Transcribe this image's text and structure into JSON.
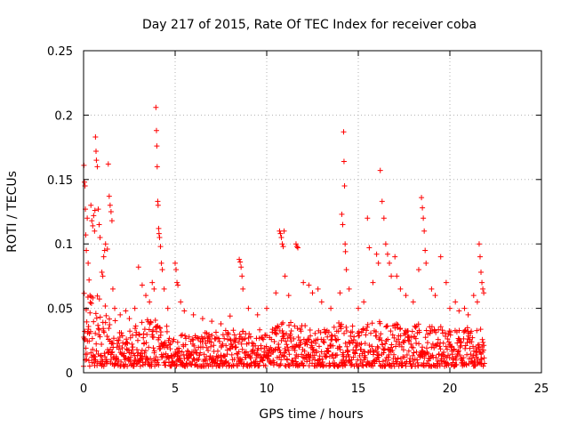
{
  "chart_data": {
    "type": "scatter",
    "title": "Day 217 of 2015, Rate Of TEC Index for receiver coba",
    "xlabel": "GPS time / hours",
    "ylabel": "ROTI / TECUs",
    "xlim": [
      0,
      25
    ],
    "ylim": [
      0,
      0.25
    ],
    "x_ticks": [
      0,
      5,
      10,
      15,
      20,
      25
    ],
    "x_tick_labels": [
      "0",
      "5",
      "10",
      "15",
      "20",
      "25"
    ],
    "y_ticks": [
      0,
      0.05,
      0.1,
      0.15,
      0.2,
      0.25
    ],
    "y_tick_labels": [
      "0",
      "0.05",
      "0.1",
      "0.15",
      "0.2",
      "0.25"
    ],
    "grid": true,
    "marker": "+",
    "color": "#ff0000",
    "series": [
      {
        "points": [
          [
            0.02,
            0.161
          ],
          [
            0.05,
            0.148
          ],
          [
            0.08,
            0.145
          ],
          [
            0.1,
            0.127
          ],
          [
            0.12,
            0.107
          ],
          [
            0.15,
            0.095
          ],
          [
            0.2,
            0.12
          ],
          [
            0.25,
            0.085
          ],
          [
            0.3,
            0.072
          ],
          [
            0.35,
            0.06
          ],
          [
            0.4,
            0.13
          ],
          [
            0.45,
            0.118
          ],
          [
            0.5,
            0.114
          ],
          [
            0.55,
            0.122
          ],
          [
            0.6,
            0.11
          ],
          [
            0.62,
            0.126
          ],
          [
            0.65,
            0.183
          ],
          [
            0.68,
            0.172
          ],
          [
            0.7,
            0.165
          ],
          [
            0.75,
            0.16
          ],
          [
            0.8,
            0.127
          ],
          [
            0.85,
            0.115
          ],
          [
            0.9,
            0.105
          ],
          [
            1.0,
            0.078
          ],
          [
            1.05,
            0.075
          ],
          [
            1.1,
            0.09
          ],
          [
            1.15,
            0.095
          ],
          [
            1.2,
            0.1
          ],
          [
            1.3,
            0.096
          ],
          [
            1.35,
            0.162
          ],
          [
            1.4,
            0.137
          ],
          [
            1.45,
            0.13
          ],
          [
            1.5,
            0.125
          ],
          [
            1.55,
            0.118
          ],
          [
            1.6,
            0.065
          ],
          [
            1.7,
            0.05
          ],
          [
            2.0,
            0.045
          ],
          [
            2.3,
            0.048
          ],
          [
            2.5,
            0.042
          ],
          [
            2.8,
            0.05
          ],
          [
            3.0,
            0.082
          ],
          [
            3.2,
            0.068
          ],
          [
            3.4,
            0.06
          ],
          [
            3.6,
            0.055
          ],
          [
            3.75,
            0.07
          ],
          [
            3.85,
            0.065
          ],
          [
            3.95,
            0.206
          ],
          [
            3.98,
            0.188
          ],
          [
            4.0,
            0.176
          ],
          [
            4.02,
            0.16
          ],
          [
            4.05,
            0.133
          ],
          [
            4.07,
            0.13
          ],
          [
            4.1,
            0.112
          ],
          [
            4.12,
            0.108
          ],
          [
            4.15,
            0.105
          ],
          [
            4.2,
            0.098
          ],
          [
            4.25,
            0.085
          ],
          [
            4.3,
            0.08
          ],
          [
            4.4,
            0.065
          ],
          [
            4.6,
            0.05
          ],
          [
            5.0,
            0.085
          ],
          [
            5.05,
            0.08
          ],
          [
            5.1,
            0.07
          ],
          [
            5.15,
            0.068
          ],
          [
            5.3,
            0.055
          ],
          [
            5.5,
            0.048
          ],
          [
            6.0,
            0.045
          ],
          [
            6.5,
            0.042
          ],
          [
            7.0,
            0.04
          ],
          [
            7.5,
            0.038
          ],
          [
            8.0,
            0.044
          ],
          [
            8.5,
            0.088
          ],
          [
            8.55,
            0.086
          ],
          [
            8.6,
            0.082
          ],
          [
            8.65,
            0.075
          ],
          [
            8.7,
            0.065
          ],
          [
            9.0,
            0.05
          ],
          [
            9.5,
            0.045
          ],
          [
            10.0,
            0.05
          ],
          [
            10.5,
            0.062
          ],
          [
            10.7,
            0.11
          ],
          [
            10.75,
            0.108
          ],
          [
            10.8,
            0.105
          ],
          [
            10.85,
            0.1
          ],
          [
            10.9,
            0.098
          ],
          [
            10.95,
            0.11
          ],
          [
            11.0,
            0.075
          ],
          [
            11.2,
            0.06
          ],
          [
            11.6,
            0.1
          ],
          [
            11.65,
            0.098
          ],
          [
            11.7,
            0.097
          ],
          [
            12.0,
            0.07
          ],
          [
            12.3,
            0.068
          ],
          [
            12.5,
            0.062
          ],
          [
            12.8,
            0.065
          ],
          [
            13.0,
            0.055
          ],
          [
            13.5,
            0.05
          ],
          [
            14.0,
            0.062
          ],
          [
            14.1,
            0.123
          ],
          [
            14.15,
            0.115
          ],
          [
            14.2,
            0.187
          ],
          [
            14.22,
            0.164
          ],
          [
            14.25,
            0.145
          ],
          [
            14.28,
            0.1
          ],
          [
            14.3,
            0.094
          ],
          [
            14.35,
            0.08
          ],
          [
            14.5,
            0.065
          ],
          [
            15.0,
            0.05
          ],
          [
            15.3,
            0.055
          ],
          [
            15.5,
            0.12
          ],
          [
            15.6,
            0.097
          ],
          [
            15.8,
            0.07
          ],
          [
            16.0,
            0.092
          ],
          [
            16.1,
            0.085
          ],
          [
            16.2,
            0.157
          ],
          [
            16.3,
            0.133
          ],
          [
            16.4,
            0.12
          ],
          [
            16.5,
            0.1
          ],
          [
            16.6,
            0.092
          ],
          [
            16.7,
            0.085
          ],
          [
            16.8,
            0.075
          ],
          [
            17.0,
            0.09
          ],
          [
            17.1,
            0.075
          ],
          [
            17.3,
            0.065
          ],
          [
            17.6,
            0.06
          ],
          [
            18.0,
            0.055
          ],
          [
            18.3,
            0.08
          ],
          [
            18.45,
            0.136
          ],
          [
            18.5,
            0.128
          ],
          [
            18.55,
            0.12
          ],
          [
            18.6,
            0.11
          ],
          [
            18.65,
            0.095
          ],
          [
            18.7,
            0.085
          ],
          [
            19.0,
            0.065
          ],
          [
            19.2,
            0.06
          ],
          [
            19.5,
            0.09
          ],
          [
            19.8,
            0.07
          ],
          [
            20.0,
            0.05
          ],
          [
            20.3,
            0.055
          ],
          [
            20.5,
            0.048
          ],
          [
            20.8,
            0.05
          ],
          [
            21.0,
            0.045
          ],
          [
            21.3,
            0.06
          ],
          [
            21.5,
            0.055
          ],
          [
            21.6,
            0.1
          ],
          [
            21.65,
            0.09
          ],
          [
            21.7,
            0.078
          ],
          [
            21.75,
            0.07
          ],
          [
            21.8,
            0.065
          ],
          [
            21.85,
            0.062
          ]
        ],
        "band": {
          "x_start": 0.0,
          "x_end": 21.9,
          "step_hours": 0.016,
          "y_floor": 0.005,
          "envelope": [
            [
              0,
              0.065
            ],
            [
              1,
              0.06
            ],
            [
              2,
              0.035
            ],
            [
              3,
              0.04
            ],
            [
              4,
              0.048
            ],
            [
              5,
              0.03
            ],
            [
              6,
              0.03
            ],
            [
              7,
              0.032
            ],
            [
              8,
              0.035
            ],
            [
              9,
              0.032
            ],
            [
              10,
              0.035
            ],
            [
              11,
              0.04
            ],
            [
              12,
              0.038
            ],
            [
              13,
              0.033
            ],
            [
              14,
              0.04
            ],
            [
              15,
              0.035
            ],
            [
              16,
              0.04
            ],
            [
              17,
              0.04
            ],
            [
              18,
              0.038
            ],
            [
              19,
              0.04
            ],
            [
              20,
              0.035
            ],
            [
              21,
              0.035
            ],
            [
              21.9,
              0.035
            ]
          ]
        }
      }
    ]
  }
}
